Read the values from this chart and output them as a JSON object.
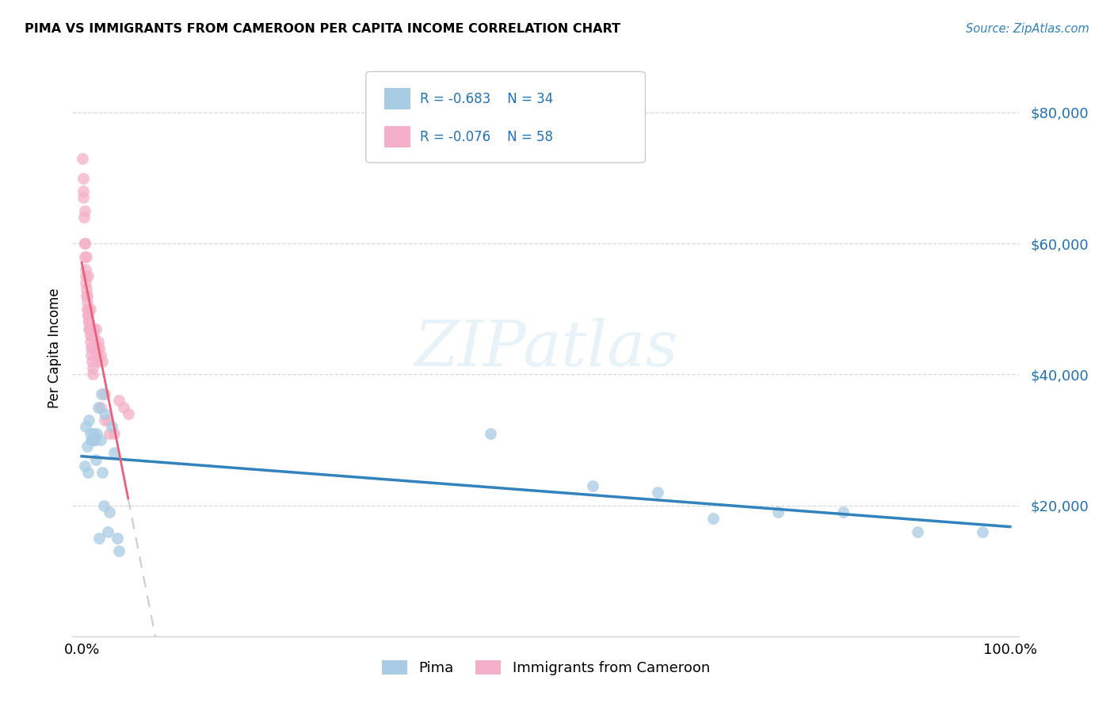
{
  "title": "PIMA VS IMMIGRANTS FROM CAMEROON PER CAPITA INCOME CORRELATION CHART",
  "source": "Source: ZipAtlas.com",
  "ylabel": "Per Capita Income",
  "legend_label1": "Pima",
  "legend_label2": "Immigrants from Cameroon",
  "r1": -0.683,
  "n1": 34,
  "r2": -0.076,
  "n2": 58,
  "color_blue": "#a8cce4",
  "color_pink": "#f4b0c8",
  "line_blue": "#3182bd",
  "line_pink": "#e8607a",
  "line_dashed_color": "#cccccc",
  "watermark": "ZIPatlas",
  "blue_x": [
    0.4,
    1.3,
    1.8,
    2.1,
    2.5,
    3.2,
    3.5,
    0.8,
    1.0,
    1.5,
    0.6,
    0.9,
    1.1,
    1.4,
    1.6,
    2.0,
    2.2,
    2.8,
    3.8,
    4.0,
    0.3,
    0.7,
    1.2,
    1.9,
    2.4,
    3.0,
    44.0,
    55.0,
    62.0,
    68.0,
    75.0,
    82.0,
    90.0,
    97.0
  ],
  "blue_y": [
    32000,
    31000,
    35000,
    37000,
    34000,
    32000,
    28000,
    33000,
    30000,
    27000,
    29000,
    31000,
    30000,
    30000,
    31000,
    30000,
    25000,
    16000,
    15000,
    13000,
    26000,
    25000,
    30000,
    15000,
    20000,
    19000,
    31000,
    23000,
    22000,
    18000,
    19000,
    19000,
    16000,
    16000
  ],
  "pink_x": [
    0.1,
    0.15,
    0.2,
    0.25,
    0.3,
    0.35,
    0.4,
    0.45,
    0.5,
    0.55,
    0.6,
    0.65,
    0.7,
    0.75,
    0.8,
    0.85,
    0.9,
    0.95,
    1.0,
    1.05,
    1.1,
    1.15,
    1.2,
    1.25,
    1.3,
    1.4,
    1.5,
    1.6,
    1.7,
    1.8,
    1.9,
    2.0,
    2.2,
    2.5,
    2.8,
    3.0,
    3.5,
    4.0,
    4.5,
    5.0,
    0.2,
    0.3,
    0.4,
    0.5,
    0.6,
    0.7,
    0.8,
    0.9,
    1.0,
    1.2,
    1.4,
    1.6,
    2.0,
    2.5,
    0.3,
    0.5,
    0.7,
    0.9
  ],
  "pink_y": [
    73000,
    70000,
    67000,
    64000,
    60000,
    58000,
    56000,
    54000,
    53000,
    52000,
    51000,
    50000,
    49000,
    48000,
    47000,
    47000,
    46000,
    45000,
    44000,
    43000,
    42000,
    41000,
    40000,
    47000,
    46000,
    45000,
    47000,
    44000,
    43000,
    45000,
    44000,
    43000,
    42000,
    37000,
    33000,
    31000,
    31000,
    36000,
    35000,
    34000,
    68000,
    65000,
    55000,
    52000,
    50000,
    49000,
    48000,
    47000,
    46000,
    44000,
    43000,
    42000,
    35000,
    33000,
    60000,
    58000,
    55000,
    50000
  ],
  "ylim_min": 0,
  "ylim_max": 88000,
  "xlim_min": -1,
  "xlim_max": 101,
  "yticks": [
    0,
    20000,
    40000,
    60000,
    80000
  ],
  "ytick_labels": [
    "",
    "$20,000",
    "$40,000",
    "$60,000",
    "$80,000"
  ],
  "bg_color": "#ffffff",
  "grid_color": "#d8d8d8"
}
